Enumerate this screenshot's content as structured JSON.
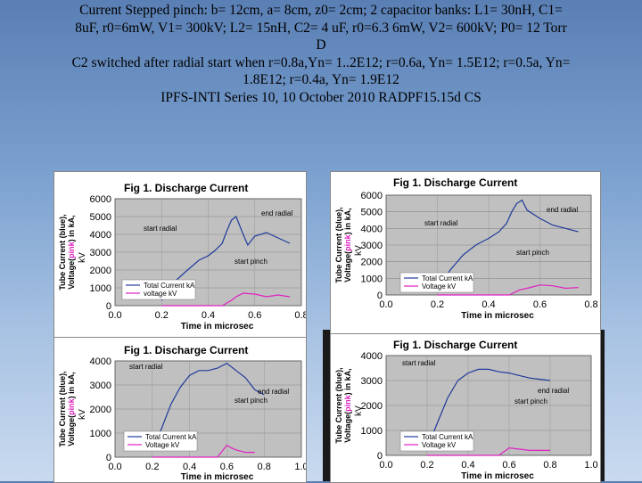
{
  "header": {
    "lines": [
      "Current Stepped  pinch: b= 12cm, a= 8cm, z0= 2cm; 2 capacitor banks: L1= 30nH, C1=",
      "8uF,   r0=6mW, V1= 300kV;   L2= 15nH, C2= 4 uF, r0=6.3 6mW, V2= 600kV; P0=  12 Torr",
      "D",
      "C2 switched after radial start when r=0.8a,Yn= 1..2E12; r=0.6a, Yn= 1.5E12; r=0.5a, Yn=",
      "1.8E12; r=0.4a, Yn= 1.9E12",
      "IPFS-INTI  Series 10,  10 October 2010  RADPF15.15d CS"
    ]
  },
  "colors": {
    "current": "#1f3a9a",
    "voltage": "#e020c0",
    "grid": "#b0b0b0"
  },
  "chart_data": [
    {
      "type": "line",
      "title": "Fig 1. Discharge Current",
      "ylabel_parts": [
        "Tube Current (blue),",
        "Voltage(",
        "pink",
        ") in kA,",
        "kV"
      ],
      "xlabel": "Time in microsec",
      "xlim": [
        0,
        0.8
      ],
      "ylim": [
        0,
        6000
      ],
      "xticks": [
        "0.0",
        "0.2",
        "0.4",
        "0.6",
        "0.8"
      ],
      "yticks": [
        "0",
        "1000",
        "2000",
        "3000",
        "4000",
        "5000",
        "6000"
      ],
      "annotations": [
        "start radial",
        "end radial",
        "start pinch"
      ],
      "legend": [
        "Total Current kA",
        "voltage kV"
      ],
      "series": [
        {
          "name": "Total Current kA",
          "x": [
            0.2,
            0.26,
            0.32,
            0.36,
            0.4,
            0.43,
            0.46,
            0.48,
            0.5,
            0.52,
            0.55,
            0.57,
            0.6,
            0.65,
            0.7,
            0.75
          ],
          "y": [
            300,
            1400,
            2100,
            2550,
            2800,
            3100,
            3500,
            4200,
            4800,
            5000,
            4000,
            3400,
            3900,
            4100,
            3800,
            3500
          ]
        },
        {
          "name": "voltage kV",
          "x": [
            0.2,
            0.46,
            0.5,
            0.52,
            0.55,
            0.6,
            0.65,
            0.7,
            0.75
          ],
          "y": [
            0,
            0,
            300,
            500,
            700,
            650,
            500,
            600,
            500
          ]
        }
      ]
    },
    {
      "type": "line",
      "title": "Fig 1. Discharge Current",
      "ylabel_parts": [
        "Tube Current (blue),",
        "Voltage(",
        "pink",
        ") in kA,",
        "kV"
      ],
      "xlabel": "Time in microsec",
      "xlim": [
        0,
        0.8
      ],
      "ylim": [
        0,
        6000
      ],
      "xticks": [
        "0.0",
        "0.2",
        "0.4",
        "0.6",
        "0.8"
      ],
      "yticks": [
        "0",
        "1000",
        "2000",
        "3000",
        "4000",
        "5000",
        "6000"
      ],
      "annotations": [
        "start radial",
        "end radial",
        "start pinch"
      ],
      "legend": [
        "Total Current kA",
        "Voltage kV"
      ],
      "series": [
        {
          "name": "Total Current kA",
          "x": [
            0.2,
            0.25,
            0.3,
            0.35,
            0.4,
            0.44,
            0.47,
            0.49,
            0.51,
            0.53,
            0.55,
            0.6,
            0.65,
            0.7,
            0.75
          ],
          "y": [
            300,
            1500,
            2400,
            3000,
            3400,
            3800,
            4300,
            5000,
            5500,
            5700,
            5100,
            4600,
            4200,
            4000,
            3800
          ]
        },
        {
          "name": "Voltage kV",
          "x": [
            0.2,
            0.48,
            0.52,
            0.55,
            0.6,
            0.65,
            0.7,
            0.75
          ],
          "y": [
            0,
            0,
            300,
            400,
            600,
            550,
            400,
            450
          ]
        }
      ]
    },
    {
      "type": "line",
      "title": "Fig 1. Discharge Current",
      "ylabel_parts": [
        "Tube Current (blue),",
        "Voltage(",
        "pink",
        ") in kA,",
        "kV"
      ],
      "xlabel": "Time in microsec",
      "xlim": [
        0,
        1.0
      ],
      "ylim": [
        0,
        4000
      ],
      "xticks": [
        "0.0",
        "0.2",
        "0.4",
        "0.6",
        "0.8",
        "1.0"
      ],
      "yticks": [
        "0",
        "1000",
        "2000",
        "3000",
        "4000"
      ],
      "annotations": [
        "start radial",
        "end radial",
        "start pinch"
      ],
      "legend": [
        "Total Current kA",
        "Voltage kV"
      ],
      "series": [
        {
          "name": "Total Current kA",
          "x": [
            0.2,
            0.25,
            0.3,
            0.35,
            0.4,
            0.45,
            0.5,
            0.55,
            0.6,
            0.65,
            0.7,
            0.75,
            0.8
          ],
          "y": [
            300,
            1200,
            2200,
            2900,
            3400,
            3600,
            3600,
            3700,
            3900,
            3600,
            3300,
            2800,
            2600
          ]
        },
        {
          "name": "Voltage kV",
          "x": [
            0.2,
            0.55,
            0.6,
            0.62,
            0.65,
            0.7,
            0.75
          ],
          "y": [
            0,
            0,
            500,
            400,
            300,
            200,
            200
          ]
        }
      ]
    },
    {
      "type": "line",
      "title": "Fig 1. Discharge Current",
      "ylabel_parts": [
        "Tube Current (blue),",
        "Voltage(",
        "pink",
        ") in kA,",
        "kV"
      ],
      "xlabel": "Time in microsec",
      "xlim": [
        0,
        1.0
      ],
      "ylim": [
        0,
        4000
      ],
      "xticks": [
        "0.0",
        "0.2",
        "0.4",
        "0.6",
        "0.8",
        "1.0"
      ],
      "yticks": [
        "0",
        "1000",
        "2000",
        "3000",
        "4000"
      ],
      "annotations": [
        "start radial",
        "end radial",
        "start pinch"
      ],
      "legend": [
        "Total Current kA",
        "Voltage kV"
      ],
      "series": [
        {
          "name": "Total Current kA",
          "x": [
            0.2,
            0.25,
            0.3,
            0.35,
            0.4,
            0.45,
            0.5,
            0.55,
            0.6,
            0.65,
            0.7,
            0.75,
            0.8
          ],
          "y": [
            300,
            1300,
            2300,
            3000,
            3300,
            3450,
            3450,
            3350,
            3300,
            3200,
            3100,
            3050,
            3000
          ]
        },
        {
          "name": "Voltage kV",
          "x": [
            0.2,
            0.55,
            0.6,
            0.65,
            0.7,
            0.75,
            0.8
          ],
          "y": [
            0,
            0,
            300,
            250,
            200,
            200,
            200
          ]
        }
      ]
    }
  ]
}
